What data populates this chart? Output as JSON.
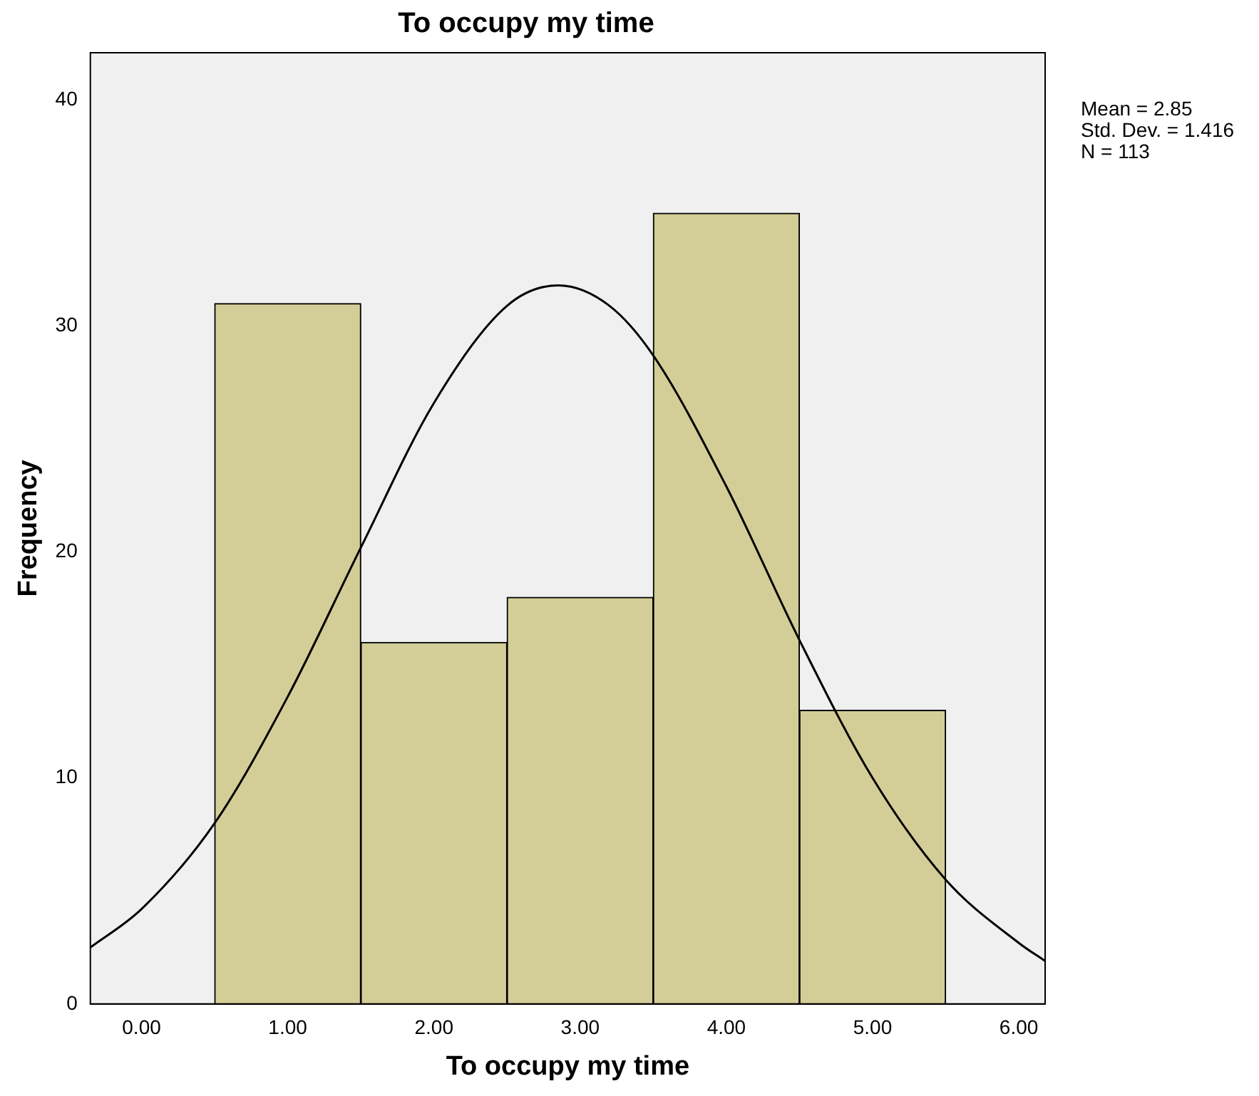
{
  "chart_data": {
    "type": "histogram",
    "title": "To occupy my time",
    "xlabel": "To occupy my time",
    "ylabel": "Frequency",
    "series": [
      {
        "bins": [
          0.5,
          1.5,
          2.5,
          3.5,
          4.5,
          5.5
        ],
        "values": [
          31,
          16,
          18,
          35,
          13
        ],
        "color": "#d3ce97"
      },
      {
        "type": "line",
        "x": [
          -0.35,
          0,
          0.5,
          1,
          1.5,
          2,
          2.5,
          2.85,
          3.2,
          3.5,
          4,
          4.5,
          5,
          5.5,
          6,
          6.18
        ],
        "values": [
          2.5,
          4.2,
          8,
          13.6,
          20.2,
          26.6,
          30.9,
          31.8,
          30.9,
          28.7,
          22.9,
          16.1,
          10,
          5.5,
          2.7,
          1.9
        ],
        "color": "#000000"
      }
    ],
    "xlim": [
      -0.35,
      6.18
    ],
    "ylim": [
      0,
      42.1
    ],
    "xticks": [
      {
        "value": 0,
        "label": "0.00"
      },
      {
        "value": 1,
        "label": "1.00"
      },
      {
        "value": 2,
        "label": "2.00"
      },
      {
        "value": 3,
        "label": "3.00"
      },
      {
        "value": 4,
        "label": "4.00"
      },
      {
        "value": 5,
        "label": "5.00"
      },
      {
        "value": 6,
        "label": "6.00"
      }
    ],
    "yticks": [
      0,
      10,
      20,
      30,
      40
    ],
    "annotations": [
      "Mean = 2.85",
      "Std. Dev. = 1.416",
      "N = 113"
    ]
  }
}
